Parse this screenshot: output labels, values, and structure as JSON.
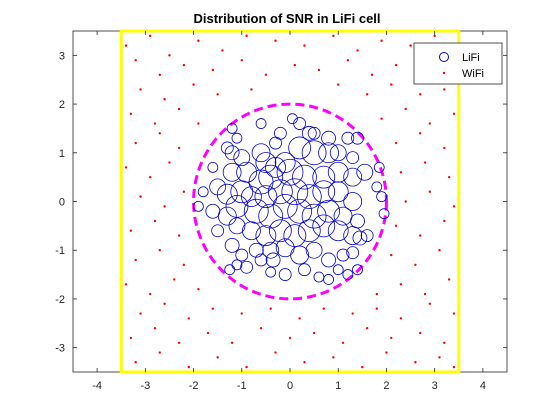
{
  "figure": {
    "background": "#ffffff"
  },
  "chart_data": {
    "type": "scatter",
    "title": "Distribution of SNR in LiFi cell",
    "xlabel": "",
    "ylabel": "",
    "xlim": [
      -4.5,
      4.5
    ],
    "ylim": [
      -3.5,
      3.5
    ],
    "xticks": [
      -4,
      -3,
      -2,
      -1,
      0,
      1,
      2,
      3,
      4
    ],
    "yticks": [
      -3,
      -2,
      -1,
      0,
      1,
      2,
      3
    ],
    "grid": false,
    "legend_position": "top-right",
    "axis_color": "#262626",
    "series": [
      {
        "name": "LiFi",
        "marker": "circle-open",
        "color": "#0000cc",
        "points": [
          [
            -1.2,
            1.5
          ],
          [
            -1.1,
            1.3
          ],
          [
            -0.6,
            1.6
          ],
          [
            -0.3,
            1.2
          ],
          [
            -0.2,
            1.4
          ],
          [
            0.2,
            1.6
          ],
          [
            0.4,
            1.4
          ],
          [
            0.5,
            1.4
          ],
          [
            0.8,
            1.3
          ],
          [
            1.2,
            1.3
          ],
          [
            1.4,
            1.3
          ],
          [
            0.05,
            1.7
          ],
          [
            -1.3,
            1.1
          ],
          [
            -1.2,
            1.0
          ],
          [
            -1.0,
            0.9
          ],
          [
            -0.6,
            1.0
          ],
          [
            -0.5,
            0.8
          ],
          [
            -0.3,
            0.7
          ],
          [
            -0.1,
            0.8
          ],
          [
            0.2,
            1.1
          ],
          [
            0.5,
            1.0
          ],
          [
            0.8,
            1.0
          ],
          [
            1.0,
            1.0
          ],
          [
            1.3,
            0.9
          ],
          [
            -1.6,
            0.7
          ],
          [
            -1.2,
            0.6
          ],
          [
            -0.9,
            0.6
          ],
          [
            -0.6,
            0.4
          ],
          [
            -0.4,
            0.5
          ],
          [
            0.0,
            0.6
          ],
          [
            0.3,
            0.5
          ],
          [
            0.7,
            0.5
          ],
          [
            1.0,
            0.6
          ],
          [
            1.3,
            0.5
          ],
          [
            1.55,
            0.6
          ],
          [
            1.85,
            0.7
          ],
          [
            -1.8,
            0.2
          ],
          [
            -1.5,
            0.3
          ],
          [
            -1.3,
            0.15
          ],
          [
            -1.0,
            0.2
          ],
          [
            -0.8,
            0.1
          ],
          [
            -0.5,
            0.1
          ],
          [
            -0.2,
            0.2
          ],
          [
            0.1,
            0.2
          ],
          [
            0.4,
            0.1
          ],
          [
            0.7,
            0.2
          ],
          [
            1.0,
            0.2
          ],
          [
            1.3,
            0.0
          ],
          [
            1.8,
            0.3
          ],
          [
            1.9,
            0.1
          ],
          [
            -1.9,
            -0.1
          ],
          [
            -1.6,
            -0.2
          ],
          [
            -1.3,
            -0.3
          ],
          [
            -1.1,
            -0.1
          ],
          [
            -0.7,
            -0.2
          ],
          [
            -0.4,
            -0.3
          ],
          [
            -0.1,
            -0.1
          ],
          [
            0.2,
            -0.2
          ],
          [
            0.5,
            -0.3
          ],
          [
            0.8,
            -0.2
          ],
          [
            1.1,
            -0.3
          ],
          [
            1.4,
            -0.4
          ],
          [
            1.95,
            -0.25
          ],
          [
            -1.5,
            -0.6
          ],
          [
            -1.1,
            -0.5
          ],
          [
            -0.8,
            -0.6
          ],
          [
            -0.5,
            -0.7
          ],
          [
            -0.2,
            -0.6
          ],
          [
            0.1,
            -0.7
          ],
          [
            0.4,
            -0.6
          ],
          [
            0.7,
            -0.5
          ],
          [
            1.0,
            -0.6
          ],
          [
            1.3,
            -0.7
          ],
          [
            1.6,
            -0.7
          ],
          [
            1.45,
            -0.75
          ],
          [
            -1.2,
            -0.9
          ],
          [
            -1.0,
            -1.1
          ],
          [
            -0.7,
            -1.0
          ],
          [
            -0.4,
            -1.0
          ],
          [
            -0.1,
            -0.95
          ],
          [
            0.2,
            -1.1
          ],
          [
            0.5,
            -1.0
          ],
          [
            0.8,
            -1.2
          ],
          [
            1.1,
            -1.1
          ],
          [
            1.3,
            -1.05
          ],
          [
            -1.1,
            -1.3
          ],
          [
            -0.9,
            -1.35
          ],
          [
            -0.6,
            -1.2
          ],
          [
            -0.4,
            -1.45
          ],
          [
            -0.1,
            -1.5
          ],
          [
            0.3,
            -1.4
          ],
          [
            0.6,
            -1.55
          ],
          [
            0.8,
            -1.6
          ],
          [
            1.0,
            -1.4
          ],
          [
            1.2,
            -1.5
          ],
          [
            1.4,
            -1.4
          ],
          [
            -1.25,
            -1.4
          ],
          [
            -0.35,
            -1.2
          ]
        ],
        "sizes": [
          5,
          5,
          5,
          6,
          6,
          6,
          7,
          6,
          7,
          6,
          6,
          5,
          6,
          7,
          8,
          9,
          10,
          10,
          10,
          11,
          12,
          10,
          8,
          6,
          5,
          9,
          10,
          12,
          12,
          13,
          12,
          11,
          10,
          9,
          8,
          5,
          5,
          8,
          10,
          11,
          10,
          11,
          12,
          13,
          12,
          11,
          10,
          9,
          5,
          5,
          5,
          7,
          9,
          11,
          12,
          12,
          12,
          12,
          12,
          11,
          9,
          7,
          5,
          6,
          8,
          9,
          10,
          11,
          11,
          11,
          11,
          10,
          9,
          6,
          7,
          7,
          6,
          7,
          8,
          9,
          9,
          8,
          7,
          6,
          6,
          5,
          6,
          6,
          5,
          6,
          6,
          5,
          5,
          5,
          5,
          5,
          5,
          7
        ]
      },
      {
        "name": "WiFi",
        "marker": "point",
        "color": "#ff0000",
        "points": [
          [
            -3.4,
            3.2
          ],
          [
            -2.9,
            3.4
          ],
          [
            -2.5,
            3.0
          ],
          [
            -1.9,
            3.3
          ],
          [
            -1.4,
            3.1
          ],
          [
            -0.9,
            3.4
          ],
          [
            -0.3,
            3.3
          ],
          [
            0.3,
            3.2
          ],
          [
            0.9,
            3.4
          ],
          [
            1.4,
            3.1
          ],
          [
            1.9,
            3.3
          ],
          [
            2.5,
            3.2
          ],
          [
            3.0,
            3.4
          ],
          [
            3.3,
            3.0
          ],
          [
            -3.2,
            2.9
          ],
          [
            -2.7,
            2.6
          ],
          [
            -2.2,
            2.8
          ],
          [
            -1.6,
            2.7
          ],
          [
            -1.0,
            2.9
          ],
          [
            -0.5,
            2.6
          ],
          [
            0.1,
            2.8
          ],
          [
            0.6,
            2.7
          ],
          [
            1.2,
            2.9
          ],
          [
            1.7,
            2.6
          ],
          [
            2.2,
            2.8
          ],
          [
            2.8,
            2.7
          ],
          [
            3.3,
            2.6
          ],
          [
            -3.1,
            2.3
          ],
          [
            -2.6,
            2.1
          ],
          [
            -2.0,
            2.4
          ],
          [
            -1.5,
            2.2
          ],
          [
            -0.8,
            2.3
          ],
          [
            1.0,
            2.4
          ],
          [
            1.6,
            2.2
          ],
          [
            2.1,
            2.4
          ],
          [
            2.7,
            2.2
          ],
          [
            3.2,
            2.3
          ],
          [
            -3.3,
            1.8
          ],
          [
            -2.8,
            1.6
          ],
          [
            -2.3,
            1.9
          ],
          [
            -1.9,
            1.6
          ],
          [
            1.9,
            1.7
          ],
          [
            2.4,
            1.9
          ],
          [
            2.9,
            1.6
          ],
          [
            3.4,
            1.8
          ],
          [
            -3.2,
            1.2
          ],
          [
            -2.7,
            1.4
          ],
          [
            -2.3,
            1.1
          ],
          [
            2.2,
            1.2
          ],
          [
            2.7,
            1.4
          ],
          [
            3.2,
            1.1
          ],
          [
            -3.4,
            0.7
          ],
          [
            -2.9,
            0.5
          ],
          [
            -2.5,
            0.8
          ],
          [
            2.3,
            0.6
          ],
          [
            2.8,
            0.8
          ],
          [
            3.3,
            0.5
          ],
          [
            -3.1,
            0.1
          ],
          [
            -2.6,
            -0.1
          ],
          [
            -2.2,
            0.2
          ],
          [
            2.4,
            0.0
          ],
          [
            2.9,
            0.2
          ],
          [
            3.4,
            -0.1
          ],
          [
            -3.3,
            -0.6
          ],
          [
            -2.8,
            -0.4
          ],
          [
            -2.3,
            -0.7
          ],
          [
            2.2,
            -0.5
          ],
          [
            2.7,
            -0.7
          ],
          [
            3.2,
            -0.4
          ],
          [
            -3.2,
            -1.2
          ],
          [
            -2.7,
            -1.0
          ],
          [
            -2.2,
            -1.3
          ],
          [
            2.1,
            -1.1
          ],
          [
            2.6,
            -1.3
          ],
          [
            3.1,
            -1.0
          ],
          [
            -3.4,
            -1.7
          ],
          [
            -2.9,
            -1.9
          ],
          [
            -2.4,
            -1.6
          ],
          [
            -1.9,
            -1.8
          ],
          [
            1.8,
            -1.9
          ],
          [
            2.3,
            -1.7
          ],
          [
            2.8,
            -1.9
          ],
          [
            3.3,
            -1.6
          ],
          [
            -3.1,
            -2.3
          ],
          [
            -2.6,
            -2.1
          ],
          [
            -2.1,
            -2.4
          ],
          [
            -1.6,
            -2.2
          ],
          [
            -1.0,
            -2.3
          ],
          [
            -0.4,
            -2.2
          ],
          [
            0.2,
            -2.4
          ],
          [
            0.7,
            -2.2
          ],
          [
            1.3,
            -2.3
          ],
          [
            1.8,
            -2.2
          ],
          [
            2.3,
            -2.4
          ],
          [
            2.9,
            -2.1
          ],
          [
            3.4,
            -2.3
          ],
          [
            -3.3,
            -2.8
          ],
          [
            -2.8,
            -2.6
          ],
          [
            -2.3,
            -2.9
          ],
          [
            -1.7,
            -2.7
          ],
          [
            -1.2,
            -2.9
          ],
          [
            -0.6,
            -2.6
          ],
          [
            0.0,
            -2.8
          ],
          [
            0.5,
            -2.7
          ],
          [
            1.1,
            -2.9
          ],
          [
            1.6,
            -2.6
          ],
          [
            2.1,
            -2.8
          ],
          [
            2.7,
            -2.7
          ],
          [
            3.2,
            -2.9
          ],
          [
            -3.2,
            -3.3
          ],
          [
            -2.7,
            -3.1
          ],
          [
            -2.1,
            -3.4
          ],
          [
            -1.5,
            -3.2
          ],
          [
            -0.9,
            -3.4
          ],
          [
            -0.3,
            -3.1
          ],
          [
            0.3,
            -3.3
          ],
          [
            0.9,
            -3.2
          ],
          [
            1.5,
            -3.4
          ],
          [
            2.0,
            -3.1
          ],
          [
            2.6,
            -3.3
          ],
          [
            3.1,
            -3.2
          ],
          [
            3.4,
            -3.4
          ]
        ]
      }
    ],
    "shapes": [
      {
        "name": "room-boundary",
        "kind": "square",
        "center": [
          0,
          0
        ],
        "half_width": 3.5,
        "color": "#ffff00",
        "style": "solid"
      },
      {
        "name": "lifi-cell-boundary",
        "kind": "circle",
        "center": [
          0,
          0
        ],
        "radius": 2,
        "color": "#ff00ff",
        "style": "dashed"
      }
    ]
  }
}
